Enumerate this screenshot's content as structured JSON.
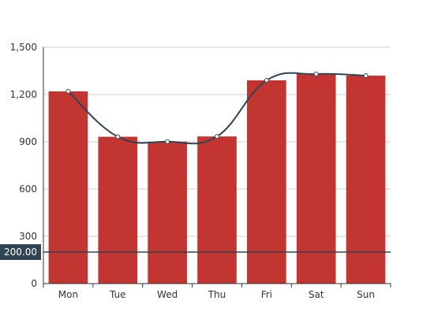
{
  "chart_data": {
    "type": "bar",
    "categories": [
      "Mon",
      "Tue",
      "Wed",
      "Thu",
      "Fri",
      "Sat",
      "Sun"
    ],
    "series": [
      {
        "type": "bar",
        "values": [
          1220,
          932,
          901,
          934,
          1290,
          1330,
          1320
        ],
        "color": "#c23531"
      },
      {
        "type": "line",
        "values": [
          1220,
          932,
          901,
          934,
          1290,
          1330,
          1320
        ],
        "color": "#2f4554"
      }
    ],
    "ylim": [
      0,
      1500
    ],
    "y_ticks": [
      0,
      300,
      600,
      900,
      1200,
      1500
    ],
    "y_tick_labels": [
      "0",
      "300",
      "600",
      "900",
      "1,200",
      "1,500"
    ],
    "grid": true,
    "reference_line": {
      "value": 200,
      "label": "200.00",
      "color": "#2f4554"
    },
    "title": "",
    "xlabel": "",
    "ylabel": ""
  }
}
